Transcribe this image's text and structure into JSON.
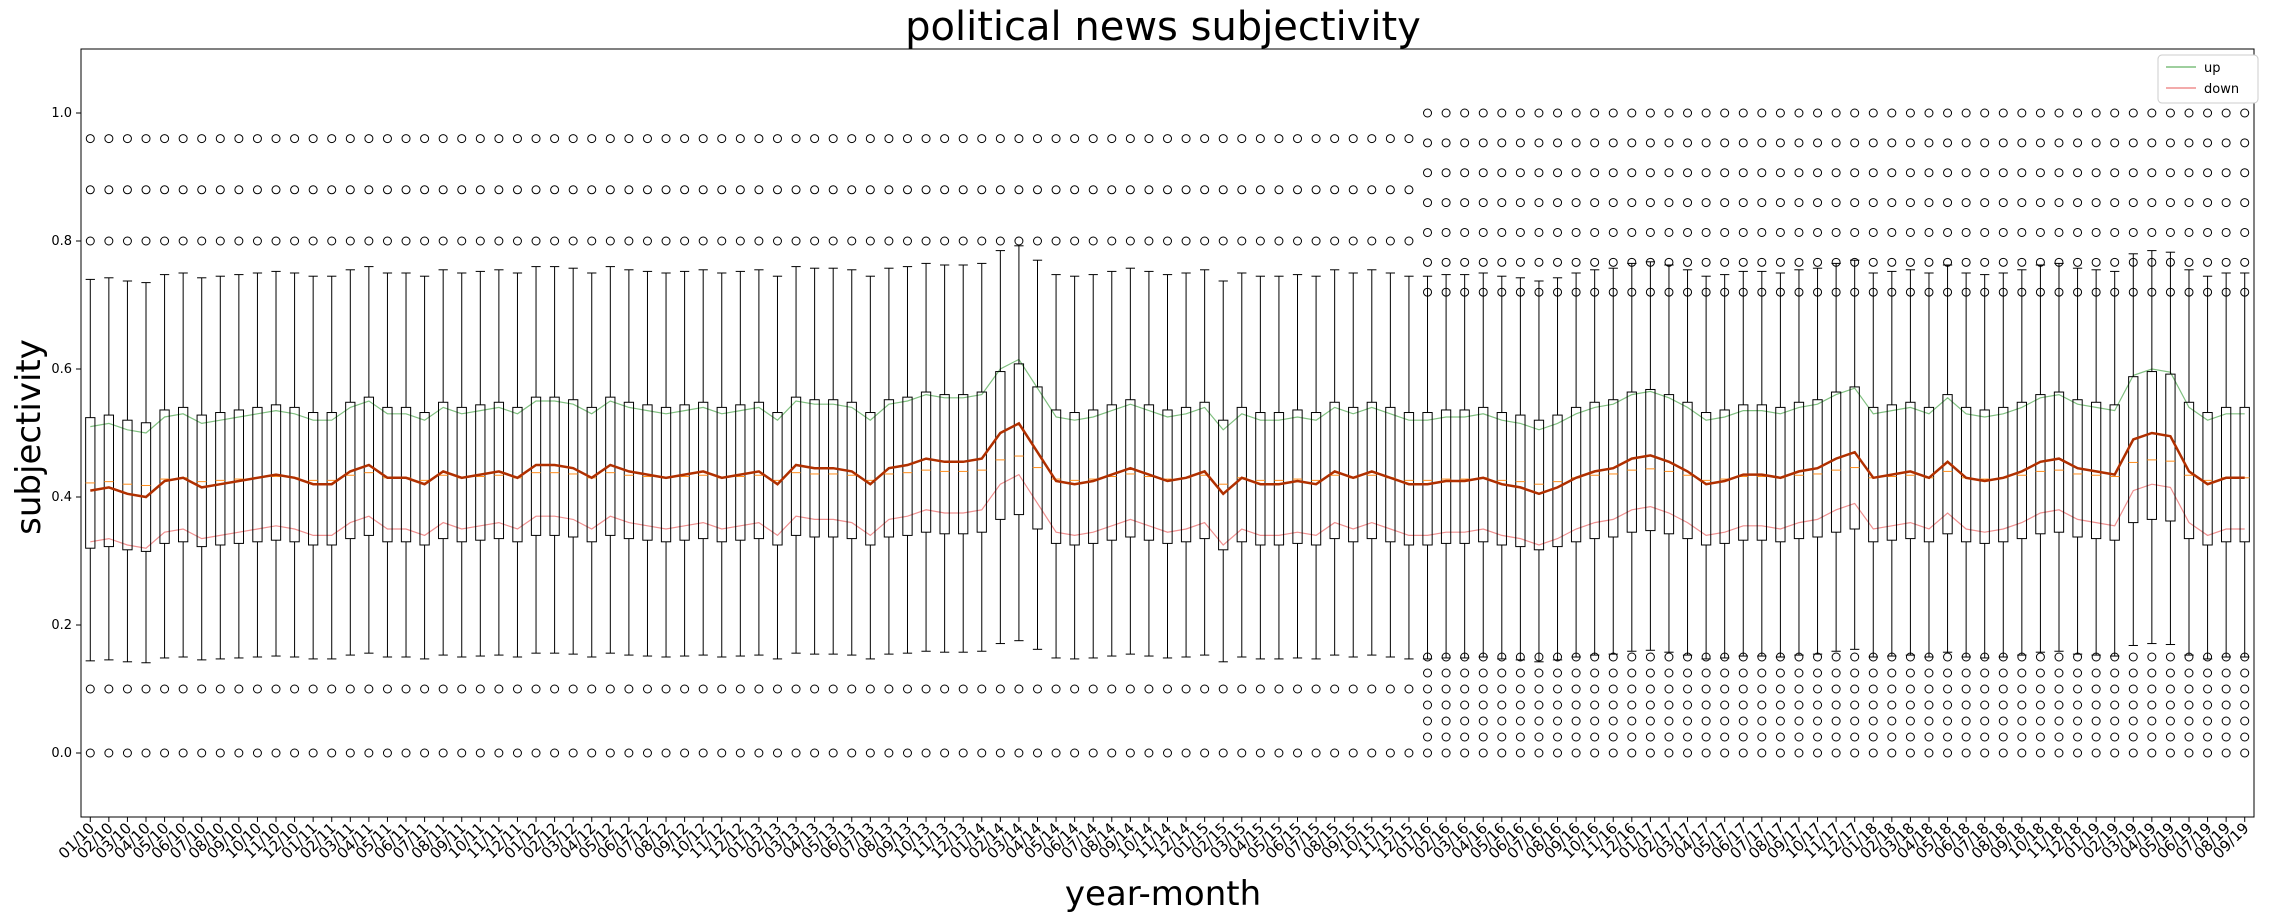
{
  "chart_data": {
    "type": "boxplot",
    "title": "political news subjectivity",
    "xlabel": "year-month",
    "ylabel": "subjectivity",
    "ylim": [
      -0.1,
      1.1
    ],
    "yticks": [
      0.0,
      0.2,
      0.4,
      0.6,
      0.8,
      1.0
    ],
    "ytick_labels": [
      "0.0",
      "0.2",
      "0.4",
      "0.6",
      "0.8",
      "1.0"
    ],
    "grid": false,
    "legend": {
      "placement": "top-right",
      "entries": [
        "up",
        "down"
      ]
    },
    "colors": {
      "up": "#7fbf7f",
      "down": "#ef8f8f",
      "mean_line": "#b03000",
      "median": "#ff8c1a",
      "box": "#000000",
      "axis": "#000000"
    },
    "categories": [
      "01/10",
      "02/10",
      "03/10",
      "04/10",
      "05/10",
      "06/10",
      "07/10",
      "08/10",
      "09/10",
      "10/10",
      "11/10",
      "12/10",
      "01/11",
      "02/11",
      "03/11",
      "04/11",
      "05/11",
      "06/11",
      "07/11",
      "08/11",
      "09/11",
      "10/11",
      "11/11",
      "12/11",
      "01/12",
      "02/12",
      "03/12",
      "04/12",
      "05/12",
      "06/12",
      "07/12",
      "08/12",
      "09/12",
      "10/12",
      "11/12",
      "12/12",
      "01/13",
      "02/13",
      "03/13",
      "04/13",
      "05/13",
      "06/13",
      "07/13",
      "08/13",
      "09/13",
      "10/13",
      "11/13",
      "12/13",
      "01/14",
      "02/14",
      "03/14",
      "04/14",
      "05/14",
      "06/14",
      "07/14",
      "08/14",
      "09/14",
      "10/14",
      "11/14",
      "12/14",
      "01/15",
      "02/15",
      "03/15",
      "04/15",
      "05/15",
      "06/15",
      "07/15",
      "08/15",
      "09/15",
      "10/15",
      "11/15",
      "12/15",
      "01/16",
      "02/16",
      "03/16",
      "04/16",
      "05/16",
      "06/16",
      "07/16",
      "08/16",
      "09/16",
      "10/16",
      "11/16",
      "12/16",
      "01/17",
      "02/17",
      "03/17",
      "04/17",
      "05/17",
      "06/17",
      "07/17",
      "08/17",
      "09/17",
      "10/17",
      "11/17",
      "12/17",
      "01/18",
      "02/18",
      "03/18",
      "04/18",
      "05/18",
      "06/18",
      "07/18",
      "08/18",
      "09/18",
      "10/18",
      "11/18",
      "12/18",
      "01/19",
      "02/19",
      "03/19",
      "04/19",
      "05/19",
      "06/19",
      "07/19",
      "08/19",
      "09/19"
    ],
    "mean_series": {
      "name": "",
      "values": [
        0.41,
        0.415,
        0.405,
        0.4,
        0.425,
        0.43,
        0.415,
        0.42,
        0.425,
        0.43,
        0.435,
        0.43,
        0.42,
        0.42,
        0.44,
        0.45,
        0.43,
        0.43,
        0.42,
        0.44,
        0.43,
        0.435,
        0.44,
        0.43,
        0.45,
        0.45,
        0.445,
        0.43,
        0.45,
        0.44,
        0.435,
        0.43,
        0.435,
        0.44,
        0.43,
        0.435,
        0.44,
        0.42,
        0.45,
        0.445,
        0.445,
        0.44,
        0.42,
        0.445,
        0.45,
        0.46,
        0.455,
        0.455,
        0.46,
        0.5,
        0.515,
        0.47,
        0.425,
        0.42,
        0.425,
        0.435,
        0.445,
        0.435,
        0.425,
        0.43,
        0.44,
        0.405,
        0.43,
        0.42,
        0.42,
        0.425,
        0.42,
        0.44,
        0.43,
        0.44,
        0.43,
        0.42,
        0.42,
        0.425,
        0.425,
        0.43,
        0.42,
        0.415,
        0.405,
        0.415,
        0.43,
        0.44,
        0.445,
        0.46,
        0.465,
        0.455,
        0.44,
        0.42,
        0.425,
        0.435,
        0.435,
        0.43,
        0.44,
        0.445,
        0.46,
        0.47,
        0.43,
        0.435,
        0.44,
        0.43,
        0.455,
        0.43,
        0.425,
        0.43,
        0.44,
        0.455,
        0.46,
        0.445,
        0.44,
        0.435,
        0.49,
        0.5,
        0.495,
        0.44,
        0.42,
        0.43,
        0.43
      ]
    },
    "box_summary": {
      "median": 0.43,
      "q1": 0.33,
      "q3": 0.54,
      "whisker_low": 0.15,
      "whisker_high": 0.75,
      "outliers_low": 0.0,
      "outliers_high": 1.0
    }
  }
}
